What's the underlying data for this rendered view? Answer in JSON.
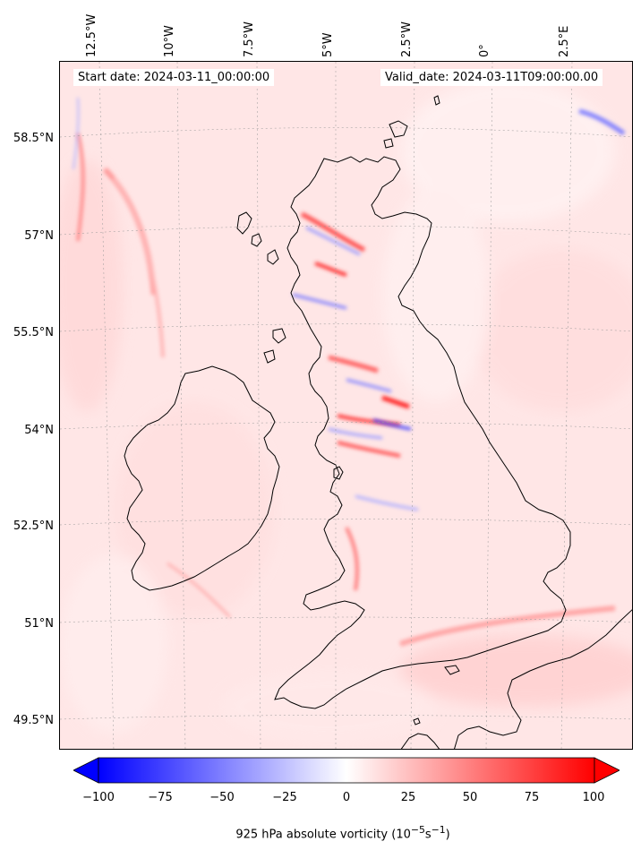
{
  "map": {
    "longitude_labels": [
      "12.5°W",
      "10°W",
      "7.5°W",
      "5°W",
      "2.5°W",
      "0°",
      "2.5°E"
    ],
    "latitude_labels": [
      "58.5°N",
      "57°N",
      "55.5°N",
      "54°N",
      "52.5°N",
      "51°N",
      "49.5°N"
    ],
    "start_date": "Start date: 2024-03-11_00:00:00",
    "valid_date": "Valid_date: 2024-03-11T09:00:00.00",
    "field": "925 hPa absolute vorticity",
    "colors": {
      "negative": "#0000ff",
      "neutral": "#ffffff",
      "positive": "#ff0000",
      "coastline": "#000000"
    }
  },
  "colorbar": {
    "ticks": [
      "−100",
      "−75",
      "−50",
      "−25",
      "0",
      "25",
      "50",
      "75",
      "100"
    ],
    "range": [
      -100,
      100
    ],
    "label_prefix": "925 hPa absolute vorticity (10",
    "label_exp1": "−5",
    "label_mid": "s",
    "label_exp2": "−1",
    "label_suffix": ")"
  }
}
